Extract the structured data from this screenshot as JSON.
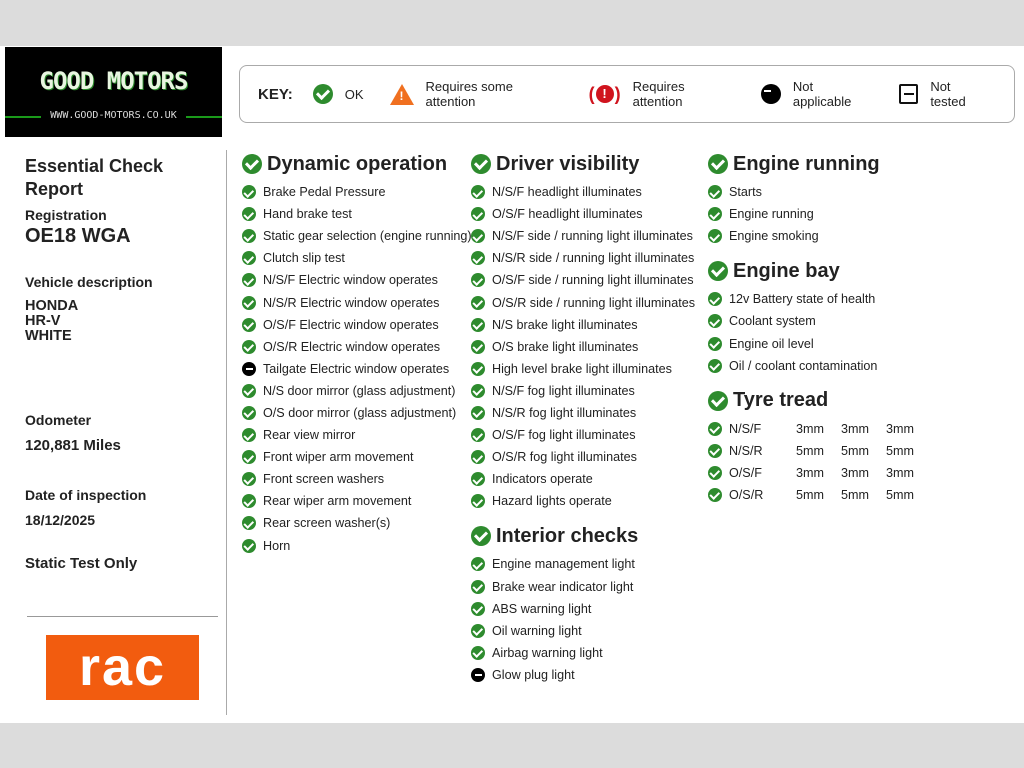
{
  "logo": {
    "name": "GOOD MOTORS",
    "url": "WWW.GOOD-MOTORS.CO.UK"
  },
  "key": {
    "label": "KEY:",
    "items": [
      {
        "icon": "check-circle-icon",
        "text": "OK"
      },
      {
        "icon": "warning-triangle-icon",
        "text": "Requires some attention"
      },
      {
        "icon": "alert-circle-icon",
        "text": "Requires attention"
      },
      {
        "icon": "minus-circle-icon",
        "text": "Not applicable"
      },
      {
        "icon": "minus-square-icon",
        "text": "Not tested"
      }
    ]
  },
  "report": {
    "title": "Essential Check Report",
    "registration_label": "Registration",
    "registration": "OE18 WGA",
    "vehicle_label": "Vehicle description",
    "make": "HONDA",
    "model": "HR-V",
    "colour": "WHITE",
    "odometer_label": "Odometer",
    "odometer": "120,881 Miles",
    "date_label": "Date of inspection",
    "date": "18/12/2025",
    "test_type": "Static Test Only",
    "rac_logo": "RAC"
  },
  "colors": {
    "ok": "#2e8b2e",
    "warn": "#f07020",
    "attention": "#d0141e",
    "rac": "#f25c0f"
  },
  "columns": [
    [
      {
        "title": "Dynamic operation",
        "items": [
          [
            "ok",
            "Brake Pedal Pressure"
          ],
          [
            "ok",
            "Hand brake test"
          ],
          [
            "ok",
            "Static gear selection (engine running)"
          ],
          [
            "ok",
            "Clutch slip test"
          ],
          [
            "ok",
            "N/S/F Electric window operates"
          ],
          [
            "ok",
            "N/S/R Electric window operates"
          ],
          [
            "ok",
            "O/S/F Electric window operates"
          ],
          [
            "ok",
            "O/S/R Electric window operates"
          ],
          [
            "na",
            "Tailgate Electric window operates"
          ],
          [
            "ok",
            "N/S door mirror (glass adjustment)"
          ],
          [
            "ok",
            "O/S door mirror (glass adjustment)"
          ],
          [
            "ok",
            "Rear view mirror"
          ],
          [
            "ok",
            "Front wiper arm movement"
          ],
          [
            "ok",
            "Front screen washers"
          ],
          [
            "ok",
            "Rear wiper arm movement"
          ],
          [
            "ok",
            "Rear screen washer(s)"
          ],
          [
            "ok",
            "Horn"
          ]
        ]
      }
    ],
    [
      {
        "title": "Driver visibility",
        "items": [
          [
            "ok",
            "N/S/F headlight illuminates"
          ],
          [
            "ok",
            "O/S/F headlight illuminates"
          ],
          [
            "ok",
            "N/S/F side / running light illuminates"
          ],
          [
            "ok",
            "N/S/R side / running light illuminates"
          ],
          [
            "ok",
            "O/S/F side / running light illuminates"
          ],
          [
            "ok",
            "O/S/R side / running light illuminates"
          ],
          [
            "ok",
            "N/S brake light illuminates"
          ],
          [
            "ok",
            "O/S brake light illuminates"
          ],
          [
            "ok",
            "High level brake light illuminates"
          ],
          [
            "ok",
            "N/S/F fog light illuminates"
          ],
          [
            "ok",
            "N/S/R fog light illuminates"
          ],
          [
            "ok",
            "O/S/F fog light illuminates"
          ],
          [
            "ok",
            "O/S/R fog light illuminates"
          ],
          [
            "ok",
            "Indicators operate"
          ],
          [
            "ok",
            "Hazard lights operate"
          ]
        ]
      },
      {
        "title": "Interior checks",
        "items": [
          [
            "ok",
            "Engine management light"
          ],
          [
            "ok",
            "Brake wear indicator light"
          ],
          [
            "ok",
            "ABS warning light"
          ],
          [
            "ok",
            "Oil warning light"
          ],
          [
            "ok",
            "Airbag warning light"
          ],
          [
            "na",
            "Glow plug light"
          ]
        ]
      }
    ],
    [
      {
        "title": "Engine running",
        "items": [
          [
            "ok",
            "Starts"
          ],
          [
            "ok",
            "Engine running"
          ],
          [
            "ok",
            "Engine smoking"
          ]
        ]
      },
      {
        "title": "Engine bay",
        "items": [
          [
            "ok",
            "12v Battery state of health"
          ],
          [
            "ok",
            "Coolant system"
          ],
          [
            "ok",
            "Engine oil level"
          ],
          [
            "ok",
            "Oil / coolant contamination"
          ]
        ]
      },
      {
        "title": "Tyre tread",
        "items": [
          [
            "ok",
            "N/S/F",
            "3mm",
            "3mm",
            "3mm"
          ],
          [
            "ok",
            "N/S/R",
            "5mm",
            "5mm",
            "5mm"
          ],
          [
            "ok",
            "O/S/F",
            "3mm",
            "3mm",
            "3mm"
          ],
          [
            "ok",
            "O/S/R",
            "5mm",
            "5mm",
            "5mm"
          ]
        ]
      }
    ]
  ]
}
